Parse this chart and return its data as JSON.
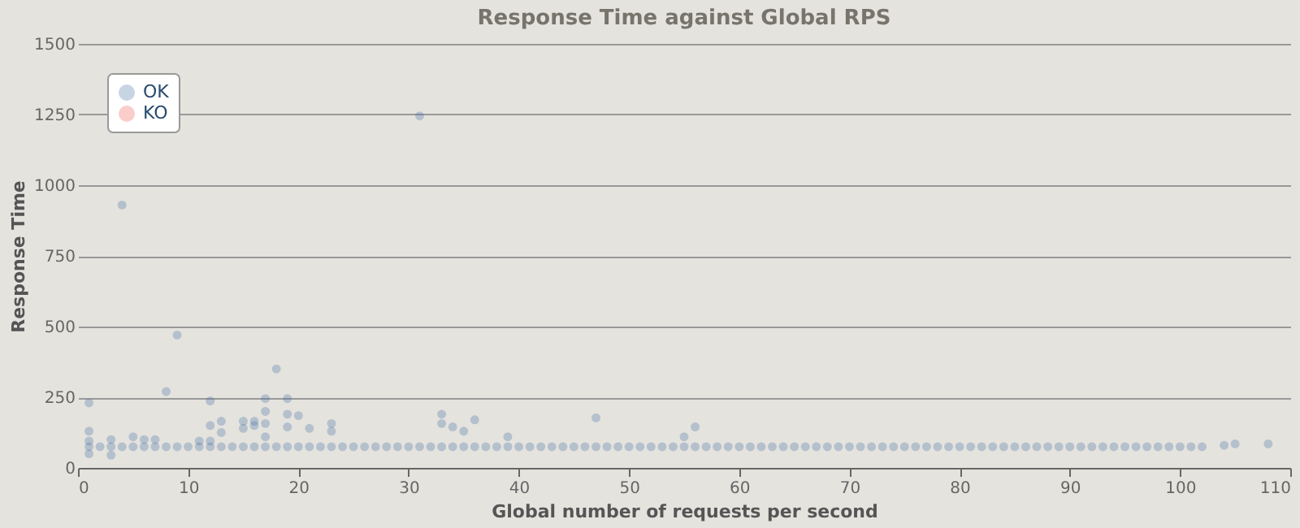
{
  "chart_data": {
    "type": "scatter",
    "title": "Response Time against Global RPS",
    "xlabel": "Global number of requests per second",
    "ylabel": "Response Time",
    "xlim": [
      0,
      110
    ],
    "xticks": [
      0,
      10,
      20,
      30,
      40,
      50,
      60,
      70,
      80,
      90,
      100,
      110
    ],
    "ylim": [
      0,
      1500
    ],
    "yticks": [
      0,
      250,
      500,
      750,
      {
        "value": 1000,
        "label": "1000"
      },
      {
        "value": 1250,
        "label": "1250"
      },
      {
        "value": 1500,
        "label": "1500"
      }
    ],
    "grid": "y",
    "legend": "top left",
    "marker": "circle",
    "series": [
      {
        "name": "OK",
        "color": "#4572a7",
        "x": [
          1,
          2,
          3,
          4,
          5,
          6,
          7,
          8,
          9,
          10,
          11,
          12,
          13,
          14,
          15,
          16,
          17,
          18,
          19,
          20,
          21,
          22,
          23,
          24,
          25,
          26,
          27,
          28,
          29,
          30,
          31,
          32,
          33,
          34,
          35,
          36,
          37,
          38,
          39,
          40,
          41,
          42,
          43,
          44,
          45,
          46,
          47,
          48,
          49,
          50,
          51,
          52,
          53,
          54,
          55,
          56,
          57,
          58,
          59,
          60,
          61,
          62,
          63,
          64,
          65,
          66,
          67,
          68,
          69,
          70,
          71,
          72,
          73,
          74,
          75,
          76,
          77,
          78,
          79,
          80,
          81,
          82,
          83,
          84,
          85,
          86,
          87,
          88,
          89,
          90,
          91,
          92,
          93,
          94,
          95,
          96,
          97,
          98,
          99,
          100,
          101,
          102,
          104,
          105,
          108,
          1,
          1,
          1,
          1,
          3,
          3,
          4,
          5,
          6,
          7,
          8,
          9,
          11,
          12,
          12,
          12,
          13,
          13,
          15,
          15,
          16,
          16,
          17,
          17,
          17,
          17,
          18,
          19,
          19,
          19,
          20,
          21,
          23,
          23,
          31,
          33,
          33,
          34,
          35,
          36,
          39,
          47,
          55,
          56
        ],
        "values": [
          75,
          75,
          75,
          75,
          75,
          75,
          75,
          75,
          75,
          75,
          75,
          75,
          75,
          75,
          75,
          75,
          75,
          75,
          75,
          75,
          75,
          75,
          75,
          75,
          75,
          75,
          75,
          75,
          75,
          75,
          75,
          75,
          75,
          75,
          75,
          75,
          75,
          75,
          75,
          75,
          75,
          75,
          75,
          75,
          75,
          75,
          75,
          75,
          75,
          75,
          75,
          75,
          75,
          75,
          75,
          75,
          75,
          75,
          75,
          75,
          75,
          75,
          75,
          75,
          75,
          75,
          75,
          75,
          75,
          75,
          75,
          75,
          75,
          75,
          75,
          75,
          75,
          75,
          75,
          75,
          75,
          75,
          75,
          75,
          75,
          75,
          75,
          75,
          75,
          75,
          75,
          75,
          75,
          75,
          75,
          75,
          75,
          75,
          75,
          75,
          75,
          75,
          80,
          85,
          85,
          230,
          130,
          95,
          50,
          100,
          45,
          930,
          110,
          100,
          100,
          270,
          470,
          95,
          237,
          150,
          95,
          165,
          125,
          165,
          140,
          165,
          150,
          245,
          200,
          157,
          110,
          350,
          245,
          190,
          145,
          185,
          140,
          157,
          130,
          1245,
          190,
          157,
          145,
          130,
          170,
          110,
          177,
          110,
          145
        ]
      },
      {
        "name": "KO",
        "color": "#f15b4f"
      }
    ]
  }
}
